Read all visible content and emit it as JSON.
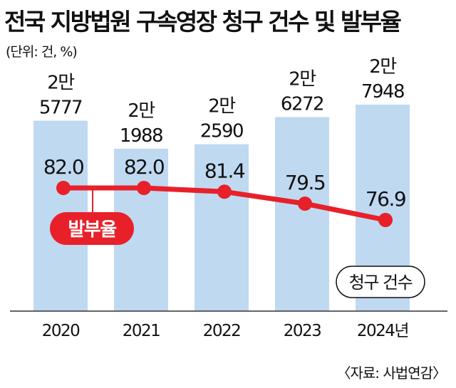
{
  "title": "전국 지방법원 구속영장 청구 건수 및 발부율",
  "unit_note": "(단위: 건, %)",
  "source": "〈자료: 사법연감〉",
  "chart_data": {
    "type": "bar",
    "categories": [
      "2020",
      "2021",
      "2022",
      "2023",
      "2024년"
    ],
    "series": [
      {
        "name": "청구 건수",
        "type": "bar",
        "values": [
          25777,
          21988,
          22590,
          26272,
          27948
        ],
        "labels_top": [
          "2만",
          "2만",
          "2만",
          "2만",
          "2만"
        ],
        "labels_bottom": [
          "5777",
          "1988",
          "2590",
          "6272",
          "7948"
        ],
        "color": "#bfd9f1"
      },
      {
        "name": "발부율",
        "type": "line",
        "values": [
          82.0,
          82.0,
          81.4,
          79.5,
          76.9
        ],
        "labels": [
          "82.0",
          "82.0",
          "81.4",
          "79.5",
          "76.9"
        ],
        "color": "#e8202a"
      }
    ]
  }
}
